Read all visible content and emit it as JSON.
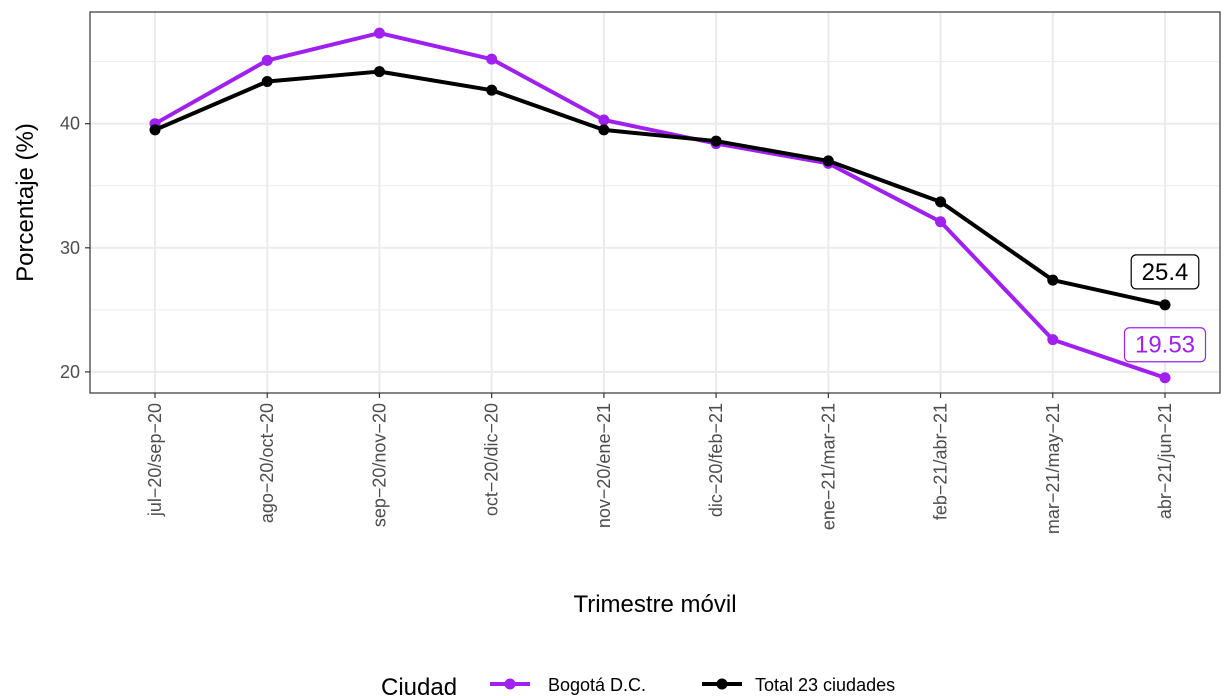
{
  "chart_data": {
    "type": "line",
    "categories": [
      "jul−20/sep−20",
      "ago−20/oct−20",
      "sep−20/nov−20",
      "oct−20/dic−20",
      "nov−20/ene−21",
      "dic−20/feb−21",
      "ene−21/mar−21",
      "feb−21/abr−21",
      "mar−21/may−21",
      "abr−21/jun−21"
    ],
    "series": [
      {
        "name": "Bogotá D.C.",
        "color": "#a020f0",
        "values": [
          40.0,
          45.1,
          47.3,
          45.2,
          40.3,
          38.4,
          36.8,
          32.1,
          22.6,
          19.53
        ]
      },
      {
        "name": "Total 23 ciudades",
        "color": "#000000",
        "values": [
          39.5,
          43.4,
          44.2,
          42.7,
          39.5,
          38.6,
          37.0,
          33.7,
          27.4,
          25.4
        ]
      }
    ],
    "end_labels": [
      {
        "series": "Total 23 ciudades",
        "text": "25.4",
        "color": "#000000"
      },
      {
        "series": "Bogotá D.C.",
        "text": "19.53",
        "color": "#a020f0"
      }
    ],
    "xlabel": "Trimestre móvil",
    "ylabel": "Porcentaje (%)",
    "ylim": [
      18.3,
      49.0
    ],
    "yticks": [
      20,
      30,
      40
    ],
    "grid": true,
    "legend": {
      "title": "Ciudad",
      "position": "bottom"
    }
  }
}
